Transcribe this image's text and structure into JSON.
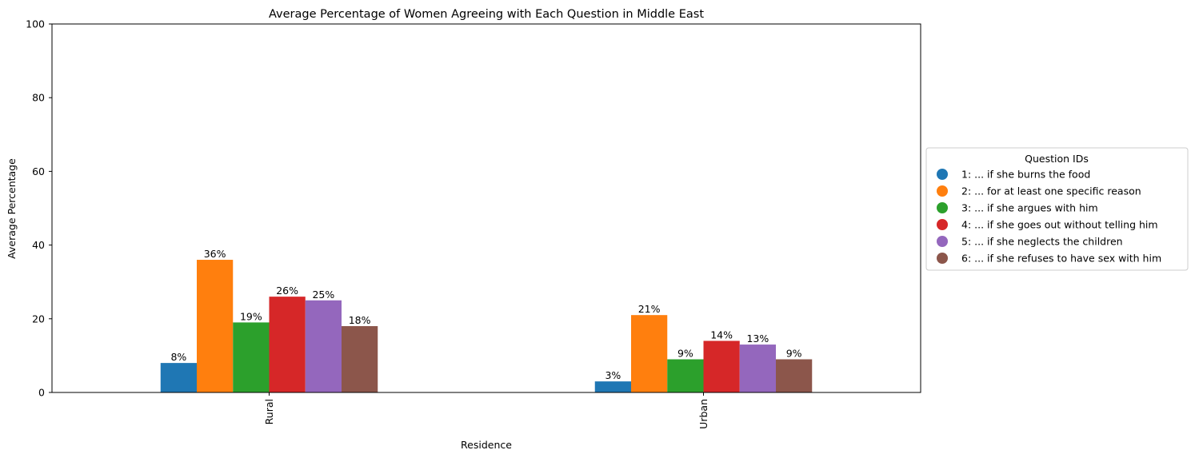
{
  "chart_data": {
    "type": "bar",
    "title": "Average Percentage of Women Agreeing with Each Question in Middle East",
    "xlabel": "Residence",
    "ylabel": "Average Percentage",
    "ylim": [
      0,
      100
    ],
    "yticks": [
      0,
      20,
      40,
      60,
      80,
      100
    ],
    "categories": [
      "Rural",
      "Urban"
    ],
    "legend_title": "Question IDs",
    "legend_position": "right",
    "grid": false,
    "series": [
      {
        "name": "1: ... if she burns the food",
        "color": "#1f77b4",
        "values": [
          8,
          3
        ],
        "labels": [
          "8%",
          "3%"
        ]
      },
      {
        "name": "2: ... for at least one specific reason",
        "color": "#ff7f0e",
        "values": [
          36,
          21
        ],
        "labels": [
          "36%",
          "21%"
        ]
      },
      {
        "name": "3: ... if she argues with him",
        "color": "#2ca02c",
        "values": [
          19,
          9
        ],
        "labels": [
          "19%",
          "9%"
        ]
      },
      {
        "name": "4: ... if she goes out without telling him",
        "color": "#d62728",
        "values": [
          26,
          14
        ],
        "labels": [
          "26%",
          "14%"
        ]
      },
      {
        "name": "5: ... if she neglects the children",
        "color": "#9467bd",
        "values": [
          25,
          13
        ],
        "labels": [
          "25%",
          "13%"
        ]
      },
      {
        "name": "6: ... if she refuses to have sex with him",
        "color": "#8c564b",
        "values": [
          18,
          9
        ],
        "labels": [
          "18%",
          "9%"
        ]
      }
    ]
  }
}
